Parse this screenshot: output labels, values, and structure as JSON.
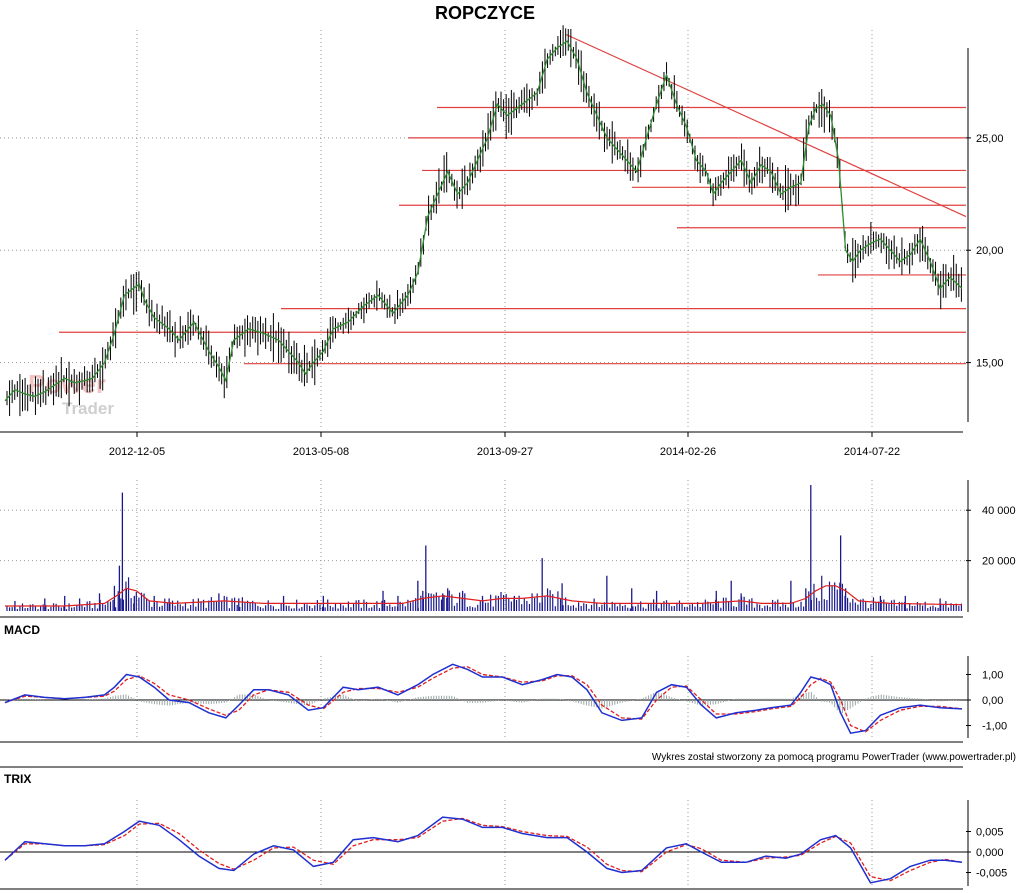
{
  "title": "ROPCZYCE",
  "watermark": {
    "line1": "Power",
    "line2": "Trader"
  },
  "credit": "Wykres został stworzony za pomocą programu PowerTrader (www.powertrader.pl)",
  "colors": {
    "hline": "#e04040",
    "price_up": "#2e8b2e",
    "price_bar": "#000000",
    "volume": "#1a1a8c",
    "volume_ma": "#e02020",
    "macd": "#1f2fd0",
    "signal": "#e02020",
    "hist": "#9aa6a6"
  },
  "chart_data": [
    {
      "type": "line",
      "name": "price",
      "title": "ROPCZYCE",
      "x_ticks": [
        "2012-12-05",
        "2013-05-08",
        "2013-09-27",
        "2014-02-26",
        "2014-07-22"
      ],
      "y_ticks": [
        "15,00",
        "20,00",
        "25,00"
      ],
      "ylim": [
        12.0,
        29.8
      ],
      "x": [
        0,
        10,
        20,
        30,
        40,
        50,
        60,
        70,
        80,
        88,
        100,
        110,
        120,
        135,
        140,
        150,
        165,
        175,
        190,
        205,
        215,
        222,
        230,
        245,
        260,
        275,
        285,
        295,
        302,
        310,
        320,
        330,
        345,
        360,
        375,
        390,
        405,
        415,
        425,
        435,
        445,
        455,
        465,
        475,
        485,
        495,
        505,
        520,
        535,
        545,
        555,
        565,
        575,
        585,
        595,
        605,
        615,
        625,
        635,
        645,
        655,
        665,
        675,
        685,
        695,
        705,
        712,
        720,
        730,
        740,
        750,
        760,
        770,
        780,
        790,
        800,
        808,
        815,
        822,
        830,
        838,
        845,
        852,
        860,
        870,
        880,
        890,
        900,
        910,
        920,
        930,
        940,
        950,
        962
      ],
      "y": [
        13.3,
        13.8,
        13.6,
        13.5,
        13.7,
        14.0,
        14.3,
        14.1,
        14.2,
        14.3,
        15.0,
        16.3,
        18.0,
        18.5,
        17.8,
        17.0,
        16.5,
        16.0,
        16.8,
        15.5,
        14.8,
        14.2,
        16.0,
        16.5,
        16.3,
        16.0,
        15.5,
        15.0,
        14.5,
        15.0,
        15.5,
        16.5,
        16.8,
        17.5,
        18.0,
        17.2,
        18.0,
        19.0,
        21.5,
        22.5,
        23.5,
        22.5,
        23.0,
        24.0,
        25.0,
        26.5,
        26.0,
        26.5,
        27.0,
        28.5,
        29.0,
        29.3,
        28.5,
        27.0,
        26.0,
        25.0,
        24.5,
        24.0,
        23.5,
        25.0,
        26.5,
        27.8,
        26.5,
        25.5,
        24.0,
        23.5,
        22.5,
        23.0,
        23.5,
        24.0,
        23.0,
        23.8,
        23.5,
        22.5,
        22.8,
        23.0,
        25.5,
        26.3,
        26.5,
        26.0,
        24.0,
        20.0,
        19.5,
        20.0,
        20.3,
        20.5,
        20.0,
        19.5,
        19.8,
        20.5,
        19.5,
        18.3,
        18.8,
        18.3
      ]
    },
    {
      "type": "bar",
      "name": "volume",
      "y_ticks": [
        "20 000",
        "40 000"
      ],
      "ylim": [
        0,
        52000
      ],
      "spikes_x": [
        10,
        40,
        60,
        75,
        95,
        110,
        115,
        118,
        122,
        130,
        150,
        165,
        215,
        235,
        280,
        320,
        380,
        395,
        415,
        420,
        423,
        440,
        445,
        460,
        480,
        512,
        540,
        560,
        605,
        630,
        655,
        715,
        730,
        740,
        790,
        805,
        810,
        840,
        845,
        880,
        905,
        940
      ],
      "spikes_v": [
        4000,
        5000,
        6000,
        5000,
        7000,
        10000,
        18000,
        47000,
        9000,
        6000,
        6000,
        5000,
        7000,
        5000,
        6000,
        6000,
        8000,
        6000,
        12000,
        8000,
        26000,
        7000,
        9000,
        8000,
        6000,
        6000,
        21000,
        11000,
        14000,
        9000,
        8000,
        8000,
        12000,
        7000,
        12000,
        9000,
        50000,
        30000,
        9000,
        6000,
        6000,
        5000
      ],
      "ma_x": [
        0,
        60,
        100,
        112,
        122,
        132,
        145,
        170,
        220,
        260,
        300,
        360,
        400,
        420,
        440,
        460,
        480,
        500,
        520,
        545,
        570,
        600,
        640,
        700,
        740,
        760,
        790,
        805,
        815,
        825,
        835,
        845,
        858,
        890,
        962
      ],
      "ma_v": [
        2000,
        2000,
        3000,
        6000,
        9000,
        8000,
        4000,
        3000,
        4000,
        3000,
        3000,
        3000,
        3000,
        5000,
        6000,
        5000,
        4000,
        5000,
        5000,
        6000,
        4000,
        3000,
        3000,
        3000,
        4000,
        3000,
        3000,
        5000,
        8000,
        10000,
        10000,
        8000,
        4000,
        3000,
        2500
      ]
    },
    {
      "type": "line",
      "title": "MACD",
      "y_ticks": [
        "-1,00",
        "0,00",
        "1,00"
      ],
      "ylim": [
        -1.45,
        1.45
      ],
      "x": [
        0,
        20,
        40,
        60,
        80,
        100,
        110,
        122,
        135,
        150,
        165,
        185,
        205,
        222,
        235,
        250,
        265,
        285,
        305,
        320,
        340,
        355,
        375,
        395,
        415,
        430,
        450,
        465,
        480,
        500,
        520,
        540,
        555,
        570,
        585,
        600,
        620,
        640,
        655,
        670,
        685,
        700,
        715,
        735,
        755,
        770,
        790,
        800,
        810,
        820,
        830,
        840,
        850,
        865,
        880,
        900,
        920,
        940,
        962
      ],
      "macd": [
        -0.1,
        0.2,
        0.1,
        0.05,
        0.1,
        0.2,
        0.5,
        1.0,
        0.9,
        0.5,
        0.0,
        -0.1,
        -0.5,
        -0.7,
        -0.2,
        0.4,
        0.4,
        0.2,
        -0.4,
        -0.3,
        0.5,
        0.4,
        0.5,
        0.2,
        0.6,
        1.0,
        1.4,
        1.2,
        0.9,
        0.9,
        0.6,
        0.8,
        1.0,
        0.9,
        0.4,
        -0.5,
        -0.8,
        -0.7,
        0.3,
        0.6,
        0.5,
        -0.2,
        -0.7,
        -0.5,
        -0.4,
        -0.3,
        -0.2,
        0.3,
        0.9,
        0.8,
        0.6,
        -0.5,
        -1.3,
        -1.2,
        -0.6,
        -0.3,
        -0.2,
        -0.3,
        -0.35
      ],
      "signal": [
        -0.1,
        0.15,
        0.1,
        0.05,
        0.1,
        0.15,
        0.35,
        0.8,
        0.95,
        0.65,
        0.2,
        0.0,
        -0.35,
        -0.6,
        -0.4,
        0.2,
        0.4,
        0.3,
        -0.2,
        -0.35,
        0.3,
        0.45,
        0.45,
        0.3,
        0.5,
        0.85,
        1.25,
        1.3,
        1.0,
        0.9,
        0.7,
        0.75,
        0.95,
        0.95,
        0.6,
        -0.2,
        -0.7,
        -0.75,
        0.0,
        0.5,
        0.55,
        0.0,
        -0.55,
        -0.55,
        -0.45,
        -0.35,
        -0.25,
        0.1,
        0.6,
        0.85,
        0.7,
        0.0,
        -1.0,
        -1.25,
        -0.8,
        -0.4,
        -0.25,
        -0.25,
        -0.35
      ]
    },
    {
      "type": "line",
      "title": "TRIX",
      "y_ticks": [
        "-0,005",
        "0,000",
        "0,005"
      ],
      "ylim": [
        -0.0078,
        0.0078
      ],
      "x": [
        0,
        20,
        40,
        60,
        80,
        100,
        120,
        135,
        155,
        175,
        195,
        215,
        230,
        250,
        270,
        290,
        310,
        330,
        350,
        370,
        395,
        415,
        440,
        460,
        480,
        500,
        520,
        545,
        565,
        585,
        605,
        620,
        640,
        665,
        685,
        700,
        720,
        745,
        765,
        785,
        800,
        820,
        835,
        850,
        870,
        890,
        910,
        930,
        945,
        962
      ],
      "trix": [
        -0.002,
        0.0025,
        0.002,
        0.0015,
        0.0015,
        0.002,
        0.005,
        0.0075,
        0.0065,
        0.003,
        -0.001,
        -0.004,
        -0.0045,
        -0.0005,
        0.0015,
        0.0005,
        -0.0035,
        -0.0025,
        0.003,
        0.0035,
        0.0025,
        0.004,
        0.0085,
        0.008,
        0.006,
        0.006,
        0.0045,
        0.0035,
        0.0035,
        0.0,
        -0.004,
        -0.005,
        -0.0045,
        0.001,
        0.002,
        0.0,
        -0.0025,
        -0.0025,
        -0.001,
        -0.0015,
        -0.0005,
        0.003,
        0.004,
        0.001,
        -0.0075,
        -0.0065,
        -0.0035,
        -0.002,
        -0.002,
        -0.0025
      ],
      "signal": [
        -0.002,
        0.002,
        0.002,
        0.0015,
        0.0015,
        0.0018,
        0.004,
        0.0068,
        0.007,
        0.0045,
        0.0005,
        -0.0028,
        -0.0042,
        -0.002,
        0.001,
        0.0012,
        -0.002,
        -0.003,
        0.0015,
        0.003,
        0.003,
        0.0035,
        0.0075,
        0.0082,
        0.0065,
        0.0062,
        0.005,
        0.004,
        0.0038,
        0.0012,
        -0.003,
        -0.0045,
        -0.0048,
        0.0,
        0.0018,
        0.0008,
        -0.002,
        -0.0025,
        -0.0015,
        -0.0012,
        -0.0008,
        0.0022,
        0.0038,
        0.0022,
        -0.006,
        -0.007,
        -0.0045,
        -0.0025,
        -0.0018,
        -0.0025
      ]
    }
  ],
  "levels": [
    {
      "y": 26.35,
      "x1": 437,
      "x2": 966
    },
    {
      "y": 25.0,
      "x1": 408,
      "x2": 966
    },
    {
      "y": 23.55,
      "x1": 422,
      "x2": 966
    },
    {
      "y": 22.8,
      "x1": 632,
      "x2": 966
    },
    {
      "y": 22.0,
      "x1": 399,
      "x2": 966
    },
    {
      "y": 21.0,
      "x1": 677,
      "x2": 966
    },
    {
      "y": 18.9,
      "x1": 818,
      "x2": 966
    },
    {
      "y": 17.4,
      "x1": 281,
      "x2": 966
    },
    {
      "y": 16.35,
      "x1": 59,
      "x2": 966
    },
    {
      "y": 14.95,
      "x1": 244,
      "x2": 966
    }
  ],
  "trendline": {
    "x1": 566,
    "y1": 29.6,
    "x2": 966,
    "y2": 21.5
  }
}
